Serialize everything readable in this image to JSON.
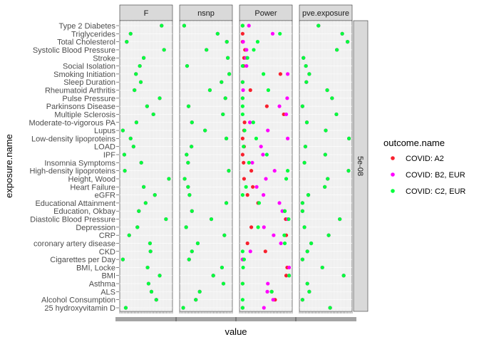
{
  "chart_data": {
    "type": "scatter",
    "xlabel": "value",
    "ylabel": "exposure.name",
    "facets": [
      "F",
      "nsnp",
      "Power",
      "pve.exposure"
    ],
    "row_strip": "5e-08",
    "legend": {
      "title": "outcome.name",
      "position": "right",
      "entries": [
        {
          "name": "COVID: A2",
          "color": "#f8212e"
        },
        {
          "name": "COVID: B2, EUR",
          "color": "#ff00ff"
        },
        {
          "name": "COVID: C2, EUR",
          "color": "#00ff3c"
        }
      ]
    },
    "x_tick_note": "x tick labels overlap and are illegible",
    "categories": [
      "Type 2 Diabetes",
      "Triglycerides",
      "Total Cholesterol",
      "Systolic Blood Pressure",
      "Stroke",
      "Social Isolation",
      "Smoking Initiation",
      "Sleep Duration",
      "Rheumatoid Arthritis",
      "Pulse Pressure",
      "Parkinsons Disease",
      "Multiple Sclerosis",
      "Moderate-to-vigorous PA",
      "Lupus",
      "Low-density lipoproteins",
      "LOAD",
      "IPF",
      "Insomnia Symptoms",
      "High-density lipoproteins",
      "Height, Wood",
      "Heart Failure",
      "eGFR",
      "Educational Attainment",
      "Education, Okbay",
      "Diastolic Blood Pressure",
      "Depression",
      "CRP",
      "coronary artery disease",
      "CKD",
      "Cigarettes per Day",
      "BMI, Locke",
      "BMI",
      "Asthma",
      "ALS",
      "Alcohol Consumption",
      "25 hydroxyvitamin D"
    ],
    "panels": [
      {
        "name": "F",
        "xlim": [
          0,
          1
        ],
        "points": {
          "COVID: A2": [
            0.82,
            0.18,
            0.1,
            0.87,
            0.45,
            0.37,
            0.29,
            0.39,
            0.26,
            0.78,
            0.52,
            0.65,
            0.3,
            0.02,
            0.18,
            0.24,
            0.05,
            0.4,
            0.06,
            0.97,
            0.45,
            0.68,
            0.49,
            0.35,
            0.91,
            0.32,
            0.15,
            0.58,
            0.59,
            0.02,
            0.53,
            0.78,
            0.55,
            0.61,
            0.71,
            0.08
          ],
          "COVID: B2, EUR": [
            0.82,
            0.18,
            0.1,
            0.87,
            0.45,
            0.37,
            0.29,
            0.39,
            0.26,
            0.78,
            0.52,
            0.65,
            0.3,
            0.02,
            0.18,
            0.24,
            0.05,
            0.4,
            0.06,
            0.97,
            0.45,
            0.68,
            0.49,
            0.35,
            0.91,
            0.32,
            0.15,
            0.58,
            0.59,
            0.02,
            0.53,
            0.78,
            0.55,
            0.61,
            0.71,
            0.08
          ],
          "COVID: C2, EUR": [
            0.82,
            0.18,
            0.1,
            0.87,
            0.45,
            0.37,
            0.29,
            0.39,
            0.26,
            0.78,
            0.52,
            0.65,
            0.3,
            0.02,
            0.18,
            0.24,
            0.05,
            0.4,
            0.06,
            0.97,
            0.45,
            0.68,
            0.49,
            0.35,
            0.91,
            0.32,
            0.15,
            0.58,
            0.59,
            0.02,
            0.53,
            0.78,
            0.55,
            0.61,
            0.71,
            0.08
          ]
        }
      },
      {
        "name": "nsnp",
        "xlim": [
          0,
          1
        ],
        "points": {
          "COVID: A2": [
            0.05,
            0.74,
            0.93,
            0.51,
            0.95,
            0.11,
            0.98,
            0.82,
            0.58,
            0.9,
            0.14,
            0.85,
            0.21,
            0.48,
            0.92,
            0.2,
            0.1,
            0.13,
            0.97,
            0.06,
            0.13,
            0.16,
            0.92,
            0.21,
            0.61,
            0.09,
            0.88,
            0.33,
            0.21,
            0.15,
            0.83,
            0.65,
            0.86,
            0.37,
            0.29,
            0.03
          ],
          "COVID: B2, EUR": [
            0.05,
            0.74,
            0.93,
            0.51,
            0.95,
            0.11,
            0.98,
            0.82,
            0.58,
            0.9,
            0.14,
            0.85,
            0.21,
            0.48,
            0.92,
            0.2,
            0.1,
            0.13,
            0.97,
            0.06,
            0.13,
            0.16,
            0.92,
            0.21,
            0.61,
            0.09,
            0.88,
            0.33,
            0.21,
            0.15,
            0.83,
            0.65,
            0.86,
            0.37,
            0.29,
            0.03
          ],
          "COVID: C2, EUR": [
            0.05,
            0.74,
            0.93,
            0.51,
            0.95,
            0.11,
            0.98,
            0.82,
            0.58,
            0.9,
            0.14,
            0.85,
            0.21,
            0.48,
            0.92,
            0.2,
            0.1,
            0.13,
            0.97,
            0.06,
            0.13,
            0.16,
            0.92,
            0.21,
            0.61,
            0.09,
            0.88,
            0.33,
            0.21,
            0.15,
            0.83,
            0.65,
            0.86,
            0.37,
            0.29,
            0.03
          ]
        }
      },
      {
        "name": "Power",
        "xlim": [
          0,
          1
        ],
        "points": {
          "COVID: A2": [
            0.02,
            0.02,
            0.02,
            0.07,
            0.05,
            0.04,
            0.8,
            0.02,
            0.18,
            0.02,
            0.52,
            0.87,
            0.06,
            0.05,
            0.02,
            0.05,
            0.02,
            0.04,
            0.2,
            0.05,
            0.23,
            0.12,
            0.34,
            0.89,
            0.91,
            0.2,
            0.92,
            0.12,
            0.49,
            0.02,
            0.94,
            0.92,
            0.02,
            0.62,
            0.69,
            0.02
          ],
          "COVID: B2, EUR": [
            0.15,
            0.64,
            0.03,
            0.1,
            0.09,
            0.1,
            0.95,
            0.02,
            0.03,
            0.94,
            0.78,
            0.92,
            0.17,
            0.54,
            0.95,
            0.4,
            0.44,
            0.22,
            0.68,
            0.5,
            0.31,
            0.45,
            0.78,
            0.84,
            0.95,
            0.46,
            0.66,
            0.81,
            0.18,
            0.02,
            0.98,
            0.98,
            0.54,
            0.53,
            0.65,
            0.46
          ],
          "COVID: C2, EUR": [
            0.02,
            0.79,
            0.33,
            0.25,
            0.12,
            0.02,
            0.45,
            0.02,
            0.55,
            0.02,
            0.02,
            0.02,
            0.24,
            0.06,
            0.3,
            0.04,
            0.52,
            0.15,
            0.95,
            0.92,
            0.09,
            0.02,
            0.36,
            0.89,
            0.97,
            0.34,
            0.88,
            0.89,
            0.02,
            0.05,
            0.03,
            0.98,
            0.02,
            0.62,
            0.02,
            0.02
          ]
        }
      },
      {
        "name": "pve.exposure",
        "xlim": [
          0,
          1
        ],
        "points": {
          "COVID: A2": [
            0.35,
            0.84,
            0.95,
            0.73,
            0.04,
            0.09,
            0.16,
            0.1,
            0.53,
            0.63,
            0.02,
            0.72,
            0.11,
            0.5,
            0.98,
            0.08,
            0.49,
            0.06,
            0.97,
            0.54,
            0.48,
            0.14,
            0.02,
            0.02,
            0.79,
            0.06,
            0.56,
            0.2,
            0.12,
            0.02,
            0.43,
            0.87,
            0.12,
            0.16,
            0.02,
            0.59
          ],
          "COVID: B2, EUR": [
            0.35,
            0.84,
            0.95,
            0.73,
            0.04,
            0.09,
            0.16,
            0.1,
            0.53,
            0.63,
            0.02,
            0.72,
            0.11,
            0.5,
            0.98,
            0.08,
            0.49,
            0.06,
            0.97,
            0.54,
            0.48,
            0.14,
            0.02,
            0.02,
            0.79,
            0.06,
            0.56,
            0.2,
            0.12,
            0.02,
            0.43,
            0.87,
            0.12,
            0.16,
            0.02,
            0.59
          ],
          "COVID: C2, EUR": [
            0.35,
            0.84,
            0.95,
            0.73,
            0.04,
            0.09,
            0.16,
            0.1,
            0.53,
            0.63,
            0.02,
            0.72,
            0.11,
            0.5,
            0.98,
            0.08,
            0.49,
            0.06,
            0.97,
            0.54,
            0.48,
            0.14,
            0.02,
            0.02,
            0.79,
            0.06,
            0.56,
            0.2,
            0.12,
            0.02,
            0.43,
            0.87,
            0.12,
            0.16,
            0.02,
            0.59
          ]
        }
      }
    ]
  }
}
